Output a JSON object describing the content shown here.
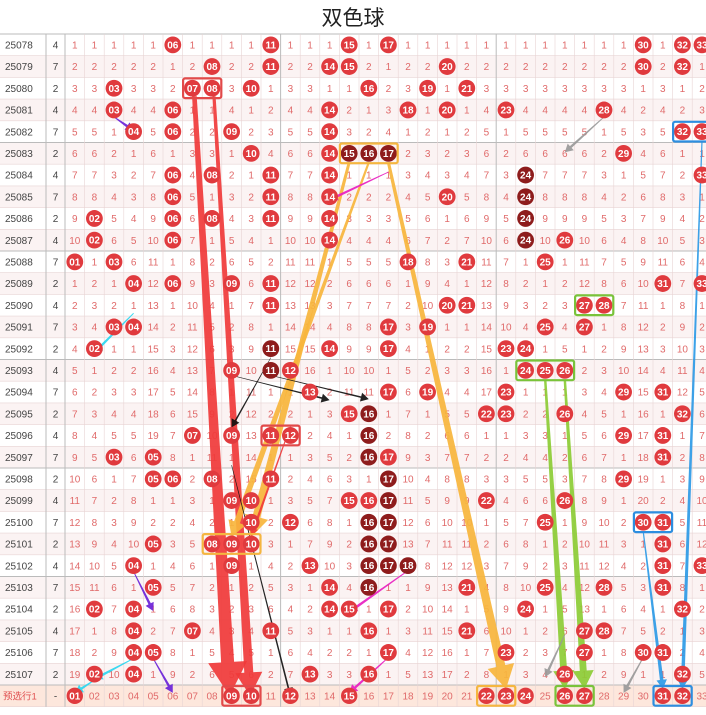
{
  "chart_title": "双色球",
  "chart_data": {
    "type": "table",
    "title": "双色球",
    "number_columns": [
      "01",
      "02",
      "03",
      "04",
      "05",
      "06",
      "07",
      "08",
      "09",
      "10",
      "11",
      "12",
      "13",
      "14",
      "15",
      "16",
      "17",
      "18",
      "19",
      "20",
      "21",
      "22",
      "23",
      "24",
      "25",
      "26",
      "27",
      "28",
      "29",
      "30",
      "31",
      "32",
      "33"
    ],
    "periods": [
      "25078",
      "25079",
      "25080",
      "25081",
      "25082",
      "25083",
      "25084",
      "25085",
      "25086",
      "25087",
      "25088",
      "25089",
      "25090",
      "25091",
      "25092",
      "25093",
      "25094",
      "25095",
      "25096",
      "25097",
      "25098",
      "25099",
      "25100",
      "25101",
      "25102",
      "25103",
      "25104",
      "25105",
      "25106",
      "25107"
    ],
    "gap_column": [
      4,
      7,
      2,
      4,
      7,
      2,
      4,
      7,
      2,
      4,
      7,
      2,
      4,
      7,
      2,
      4,
      7,
      2,
      4,
      7,
      2,
      4,
      7,
      2,
      4,
      7,
      2,
      4,
      7,
      2
    ],
    "draws": [
      [
        6,
        11,
        15,
        17,
        30,
        32,
        33
      ],
      [
        8,
        11,
        14,
        15,
        20,
        30,
        32
      ],
      [
        3,
        7,
        8,
        10,
        16,
        19,
        21
      ],
      [
        3,
        6,
        14,
        18,
        20,
        23,
        28
      ],
      [
        4,
        6,
        9,
        14,
        32,
        33
      ],
      [
        10,
        14,
        15,
        16,
        17,
        29
      ],
      [
        6,
        8,
        11,
        14,
        24,
        33
      ],
      [
        6,
        11,
        14,
        20,
        24
      ],
      [
        2,
        6,
        8,
        11,
        14,
        24
      ],
      [
        2,
        6,
        14,
        24,
        26
      ],
      [
        1,
        3,
        18,
        21,
        25
      ],
      [
        4,
        6,
        9,
        11,
        31,
        33
      ],
      [
        11,
        20,
        21,
        27,
        28
      ],
      [
        3,
        4,
        17,
        19,
        25,
        27
      ],
      [
        2,
        11,
        14,
        17,
        23,
        24
      ],
      [
        9,
        11,
        12,
        24,
        25,
        26
      ],
      [
        13,
        17,
        19,
        23,
        29,
        31
      ],
      [
        15,
        16,
        22,
        23,
        26,
        32
      ],
      [
        7,
        9,
        11,
        12,
        16,
        29,
        31
      ],
      [
        3,
        5,
        16,
        17,
        31
      ],
      [
        5,
        6,
        8,
        11,
        17,
        29
      ],
      [
        9,
        10,
        15,
        16,
        17,
        22,
        26
      ],
      [
        10,
        12,
        16,
        17,
        25,
        30,
        31
      ],
      [
        5,
        8,
        9,
        10,
        16,
        17,
        31
      ],
      [
        4,
        9,
        13,
        16,
        17,
        18,
        31,
        33
      ],
      [
        5,
        14,
        16,
        21,
        25,
        28,
        31
      ],
      [
        2,
        4,
        14,
        15,
        17,
        24,
        32
      ],
      [
        4,
        7,
        11,
        16,
        21,
        27,
        28
      ],
      [
        4,
        5,
        17,
        23,
        27,
        30,
        31
      ],
      [
        2,
        4,
        13,
        16,
        26,
        32
      ]
    ],
    "highlighted_draws": [
      {
        "period": "25080",
        "numbers": [
          7,
          8
        ]
      },
      {
        "period": "25082",
        "numbers": [
          32,
          33
        ]
      },
      {
        "period": "25083",
        "numbers": [
          15,
          16,
          17
        ]
      },
      {
        "period": "25090",
        "numbers": [
          27,
          28
        ]
      },
      {
        "period": "25093",
        "numbers": [
          24,
          25,
          26
        ]
      },
      {
        "period": "25096",
        "numbers": [
          11,
          12
        ]
      },
      {
        "period": "25100",
        "numbers": [
          30,
          31
        ]
      },
      {
        "period": "25101",
        "numbers": [
          8,
          9,
          10
        ]
      }
    ],
    "prediction_row": {
      "label": "预选行1",
      "picks": [
        1,
        9,
        10,
        12,
        15,
        22,
        23,
        24,
        26,
        27,
        31,
        32
      ],
      "boxed_picks": [
        [
          9,
          10
        ],
        [
          22,
          23
        ],
        [
          26,
          27
        ],
        [
          31,
          32
        ]
      ]
    }
  },
  "colors": {
    "ball_red": "#e03a3e",
    "ball_darkred": "#8e1c1c",
    "miss_text": "#e06a6a",
    "grid_line": "#e8d4d4",
    "divider": "#bbbbbb",
    "prediction_bg": "#fde7dc",
    "box_red": "#e24a4a",
    "box_orange": "#f5b640",
    "box_green": "#79c33a",
    "box_blue": "#2d8ee0",
    "arrow_red": "#f03a3a",
    "arrow_orange": "#f7b53c",
    "arrow_green": "#8ccc35",
    "arrow_blue": "#2d9ae6",
    "arrow_black": "#111111",
    "arrow_magenta": "#e81ec0",
    "arrow_cyan": "#2ad7f0",
    "arrow_purple": "#6a22d8",
    "arrow_gray": "#999999"
  }
}
